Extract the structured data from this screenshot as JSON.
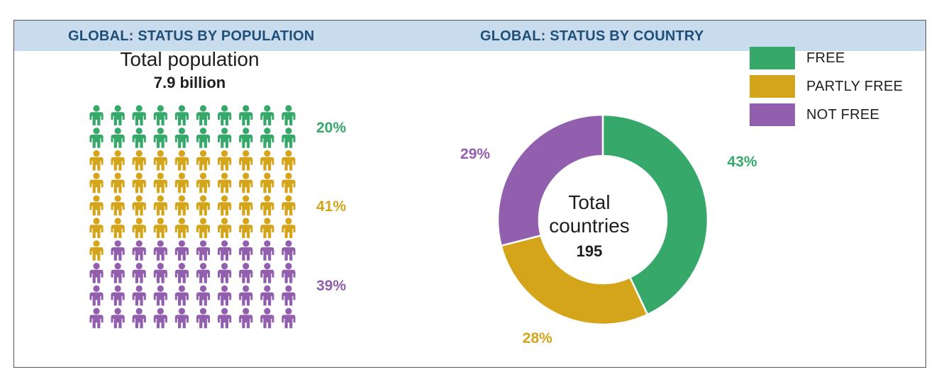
{
  "header": {
    "left_title": "GLOBAL: STATUS BY POPULATION",
    "right_title": "GLOBAL: STATUS BY COUNTRY"
  },
  "population": {
    "heading": "Total population",
    "total": "7.9 billion"
  },
  "countries": {
    "center_line1": "Total",
    "center_line2": "countries",
    "total": "195"
  },
  "legend": [
    {
      "label": "FREE",
      "color": "#35a86a"
    },
    {
      "label": "PARTLY FREE",
      "color": "#d4a51a"
    },
    {
      "label": "NOT FREE",
      "color": "#925fae"
    }
  ],
  "chart_data": [
    {
      "type": "pictogram",
      "title": "GLOBAL: STATUS BY POPULATION",
      "unit_count": 100,
      "categories": [
        "FREE",
        "PARTLY FREE",
        "NOT FREE"
      ],
      "values": [
        20,
        41,
        39
      ],
      "labels": [
        "20%",
        "41%",
        "39%"
      ],
      "colors": [
        "#35a86a",
        "#d4a51a",
        "#925fae"
      ]
    },
    {
      "type": "pie",
      "style": "donut",
      "title": "GLOBAL: STATUS BY COUNTRY",
      "categories": [
        "FREE",
        "PARTLY FREE",
        "NOT FREE"
      ],
      "values": [
        43,
        28,
        29
      ],
      "labels": [
        "43%",
        "28%",
        "29%"
      ],
      "colors": [
        "#35a86a",
        "#d4a51a",
        "#925fae"
      ]
    }
  ]
}
